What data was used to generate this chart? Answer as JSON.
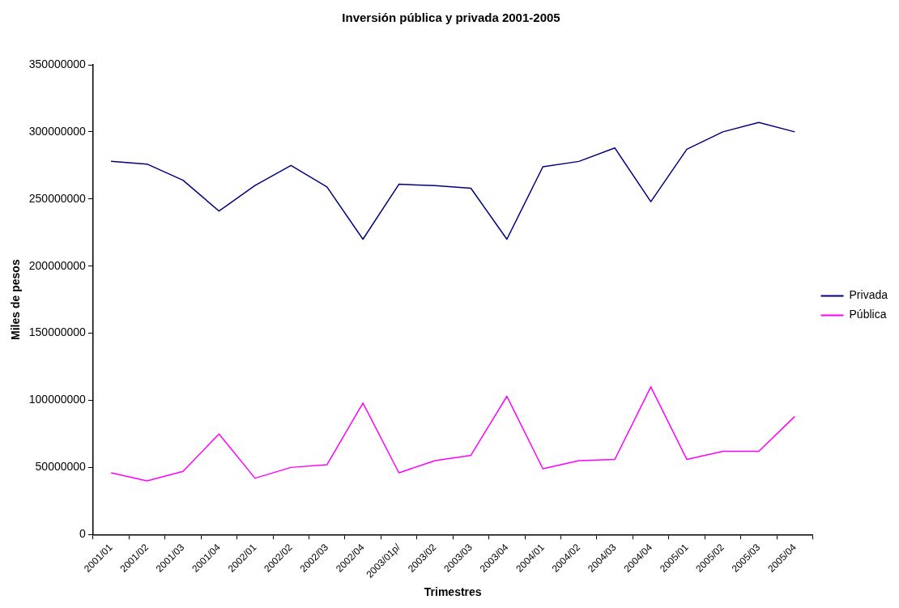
{
  "chart_data": {
    "type": "line",
    "title": "Inversión pública y privada 2001-2005",
    "xlabel": "Trimestres",
    "ylabel": "Miles de pesos",
    "categories": [
      "2001/01",
      "2001/02",
      "2001/03",
      "2001/04",
      "2002/01",
      "2002/02",
      "2002/03",
      "2002/04",
      "2003/01p/",
      "2003/02",
      "2003/03",
      "2003/04",
      "2004/01",
      "2004/02",
      "2004/03",
      "2004/04",
      "2005/01",
      "2005/02",
      "2005/03",
      "2005/04"
    ],
    "series": [
      {
        "name": "Privada",
        "color": "#000080",
        "values": [
          278000000,
          276000000,
          264000000,
          241000000,
          260000000,
          275000000,
          259000000,
          220000000,
          261000000,
          260000000,
          258000000,
          220000000,
          274000000,
          278000000,
          288000000,
          248000000,
          287000000,
          300000000,
          307000000,
          300000000
        ]
      },
      {
        "name": "Pública",
        "color": "#ff00ff",
        "values": [
          46000000,
          40000000,
          47000000,
          75000000,
          42000000,
          50000000,
          52000000,
          98000000,
          46000000,
          55000000,
          59000000,
          103000000,
          49000000,
          55000000,
          56000000,
          110000000,
          56000000,
          62000000,
          62000000,
          88000000
        ]
      }
    ],
    "ylim": [
      0,
      350000000
    ],
    "yticks": [
      0,
      50000000,
      100000000,
      150000000,
      200000000,
      250000000,
      300000000,
      350000000
    ],
    "grid": false,
    "legend": "right",
    "marker": "none",
    "line_style": "solid"
  }
}
